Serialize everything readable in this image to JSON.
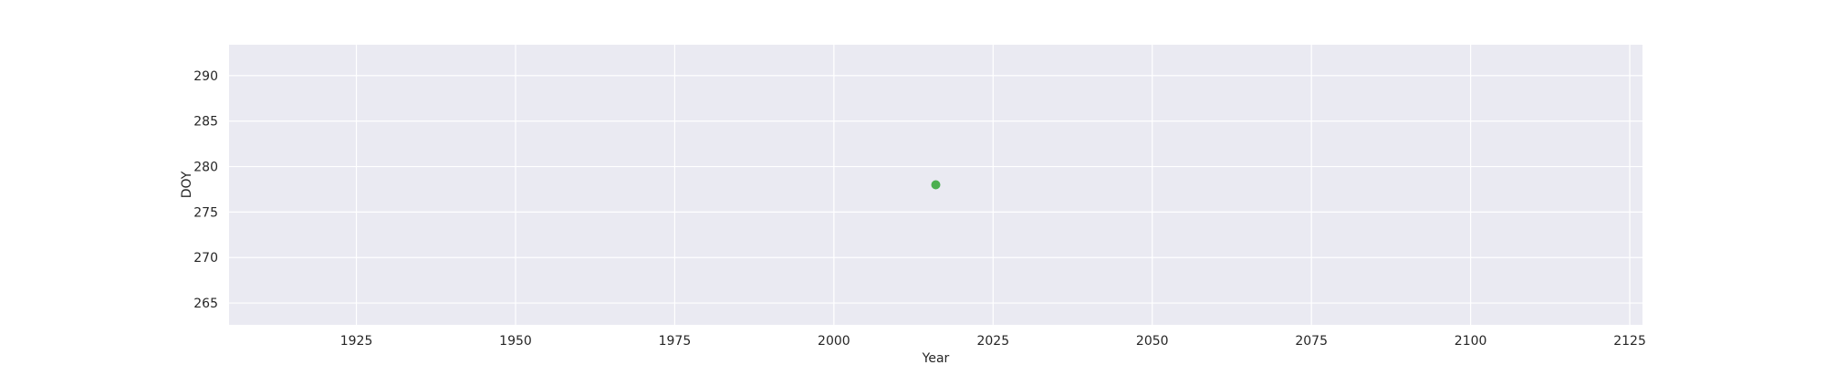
{
  "chart_data": {
    "type": "scatter",
    "title": "",
    "xlabel": "Year",
    "ylabel": "DOY",
    "xlim": [
      1905,
      2127
    ],
    "ylim": [
      262.6,
      293.4
    ],
    "xticks": [
      1925,
      1950,
      1975,
      2000,
      2025,
      2050,
      2075,
      2100,
      2125
    ],
    "yticks": [
      265,
      270,
      275,
      280,
      285,
      290
    ],
    "grid": true,
    "background_color": "#eaeaf2",
    "grid_color": "#ffffff",
    "series": [
      {
        "color": "#4caf50",
        "points": [
          {
            "x": 2016,
            "y": 278
          }
        ]
      }
    ]
  }
}
